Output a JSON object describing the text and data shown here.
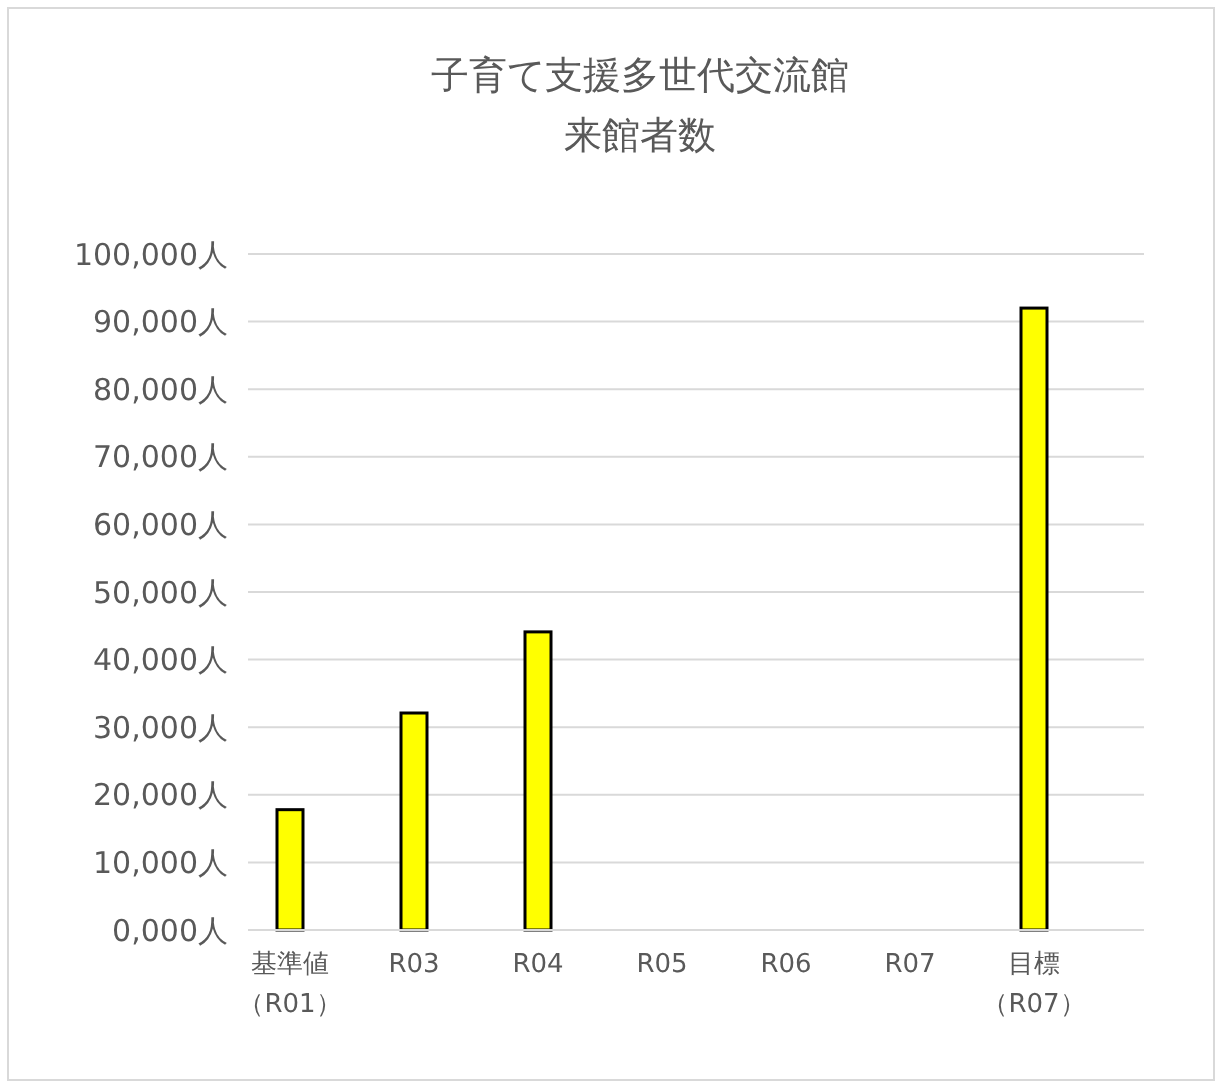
{
  "chart_data": {
    "type": "bar",
    "title": "子育て支援多世代交流館来館者数",
    "categories": [
      "基準値（R01）",
      "R03",
      "R04",
      "R05",
      "R06",
      "R07",
      "目標（R07）"
    ],
    "values": [
      17800,
      32100,
      44100,
      null,
      null,
      null,
      92000
    ],
    "color": "#ffff00",
    "ylim": [
      0,
      100000
    ],
    "yticks": [
      {
        "value": 0,
        "label": "0,000人"
      },
      {
        "value": 10000,
        "label": "10,000人"
      },
      {
        "value": 20000,
        "label": "20,000人"
      },
      {
        "value": 30000,
        "label": "30,000人"
      },
      {
        "value": 40000,
        "label": "40,000人"
      },
      {
        "value": 50000,
        "label": "50,000人"
      },
      {
        "value": 60000,
        "label": "60,000人"
      },
      {
        "value": 70000,
        "label": "70,000人"
      },
      {
        "value": 80000,
        "label": "80,000人"
      },
      {
        "value": 90000,
        "label": "90,000人"
      },
      {
        "value": 100000,
        "label": "100,000人"
      }
    ],
    "grid": true
  }
}
